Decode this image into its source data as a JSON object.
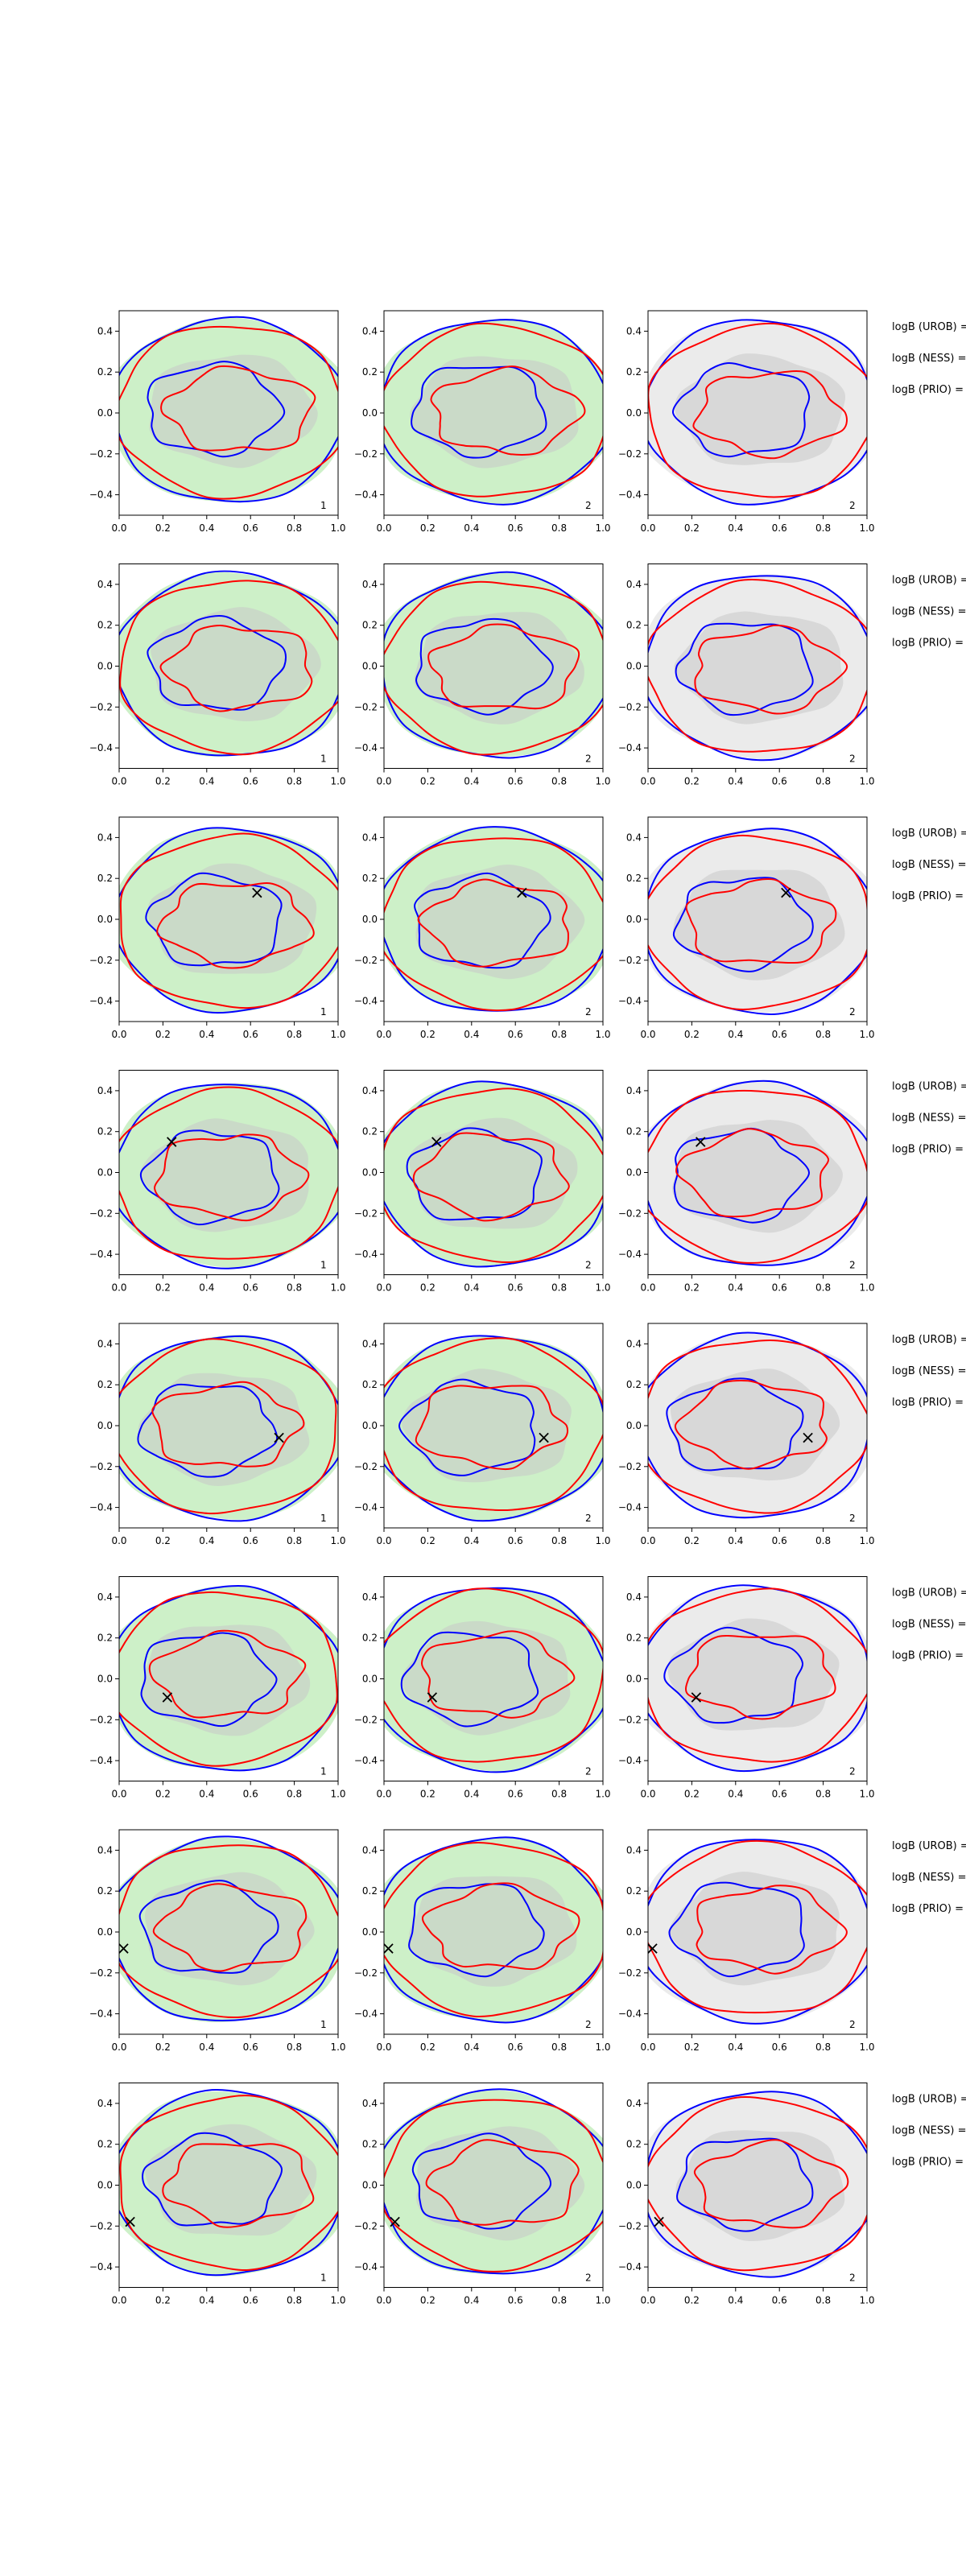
{
  "chart_data": {
    "type": "contour-grid",
    "title": "",
    "xlabel": "",
    "ylabel": "",
    "xlim": [
      0.0,
      1.0
    ],
    "ylim": [
      -0.5,
      0.5
    ],
    "x_ticks": [
      0.0,
      0.2,
      0.4,
      0.6,
      0.8,
      1.0
    ],
    "y_ticks": [
      -0.4,
      -0.2,
      0.0,
      0.2,
      0.4
    ],
    "x_tick_labels": [
      "0.0",
      "0.2",
      "0.4",
      "0.6",
      "0.8",
      "1.0"
    ],
    "y_tick_labels": [
      "−0.4",
      "−0.2",
      "0.0",
      "0.2",
      "0.4"
    ],
    "panel_fill_colors": [
      "#cdf0c8",
      "#cdf0c8",
      "#ebebeb"
    ],
    "panel_id_labels": [
      "1",
      "2",
      "2"
    ],
    "side_labels": [
      "logB (UROB) =",
      "logB (NESS) =",
      "logB (PRIO) ="
    ],
    "contour_colors": {
      "inner_shade": "#c8c8c8",
      "series_a": "#0000ff",
      "series_b": "#ff0000"
    },
    "marker": "×",
    "rows": [
      {
        "row": 1,
        "marker": null
      },
      {
        "row": 2,
        "marker": null
      },
      {
        "row": 3,
        "marker": [
          0.63,
          0.13
        ]
      },
      {
        "row": 4,
        "marker": [
          0.24,
          0.15
        ]
      },
      {
        "row": 5,
        "marker": [
          0.73,
          -0.06
        ]
      },
      {
        "row": 6,
        "marker": [
          0.22,
          -0.09
        ]
      },
      {
        "row": 7,
        "marker": [
          0.02,
          -0.08
        ]
      },
      {
        "row": 8,
        "marker": [
          0.05,
          -0.18
        ]
      }
    ]
  }
}
